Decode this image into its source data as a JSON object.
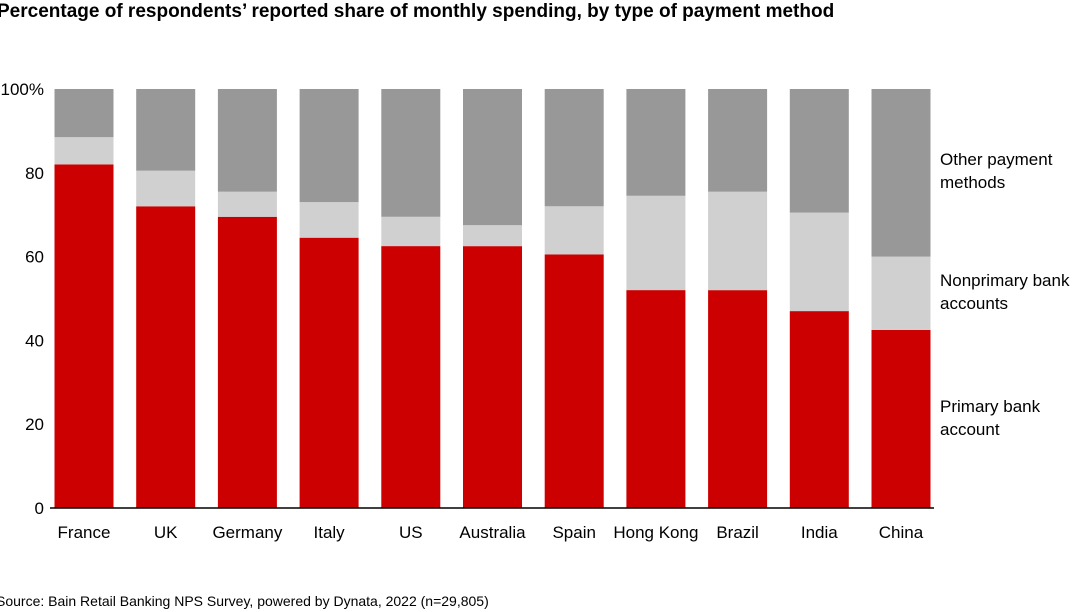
{
  "title": "Percentage of respondents’ reported share of monthly spending, by type of payment method",
  "source": "Source: Bain Retail Banking NPS Survey, powered by Dynata, 2022 (n=29,805)",
  "legend": {
    "other": [
      "Other payment",
      "methods"
    ],
    "nonprimary": [
      "Nonprimary bank",
      "accounts"
    ],
    "primary": [
      "Primary bank",
      "account"
    ]
  },
  "colors": {
    "primary": "#cc0000",
    "nonprimary": "#d0d0d0",
    "other": "#989898"
  },
  "chart_data": {
    "type": "bar",
    "stacked": true,
    "categories": [
      "France",
      "UK",
      "Germany",
      "Italy",
      "US",
      "Australia",
      "Spain",
      "Hong Kong",
      "Brazil",
      "India",
      "China"
    ],
    "series": [
      {
        "name": "Primary bank account",
        "values": [
          82,
          72,
          69.5,
          64.5,
          62.5,
          62.5,
          60.5,
          52,
          52,
          47,
          42.5
        ]
      },
      {
        "name": "Nonprimary bank accounts",
        "values": [
          6.5,
          8.5,
          6,
          8.5,
          7,
          5,
          11.5,
          22.5,
          23.5,
          23.5,
          17.5
        ]
      },
      {
        "name": "Other payment methods",
        "values": [
          11.5,
          19.5,
          24.5,
          27,
          30.5,
          32.5,
          28,
          25.5,
          24.5,
          29.5,
          40
        ]
      }
    ],
    "yticks": [
      "0",
      "20",
      "40",
      "60",
      "80",
      "100%"
    ],
    "ylim": [
      0,
      100
    ]
  }
}
